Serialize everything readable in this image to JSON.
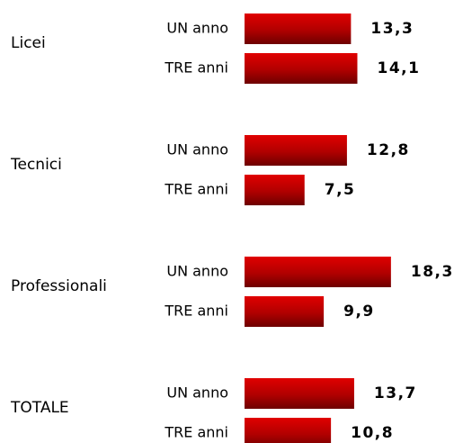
{
  "chart_data": {
    "type": "bar",
    "orientation": "horizontal",
    "categories": [
      "Licei",
      "Tecnici",
      "Professionali",
      "TOTALE"
    ],
    "series": [
      {
        "name": "UN anno",
        "color": "#c00000",
        "values": [
          13.3,
          12.8,
          18.3,
          13.7
        ],
        "value_labels": [
          "13,3",
          "12,8",
          "18,3",
          "13,7"
        ]
      },
      {
        "name": "TRE anni",
        "color": "#c00000",
        "values": [
          14.1,
          7.5,
          9.9,
          10.8
        ],
        "value_labels": [
          "14,1",
          "7,5",
          "9,9",
          "10,8"
        ]
      }
    ]
  }
}
